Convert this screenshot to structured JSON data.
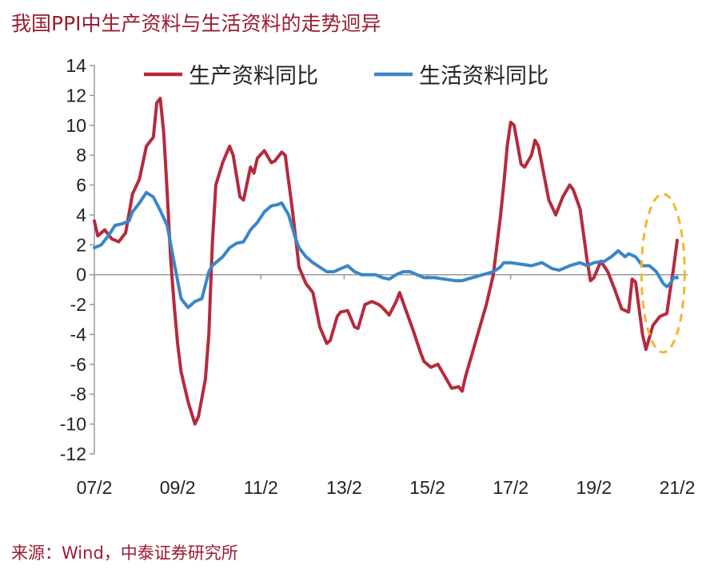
{
  "title": "我国PPI中生产资料与生活资料的走势迥异",
  "source": "来源：Wind，中泰证券研究所",
  "colors": {
    "producer": "#B52A3C",
    "consumer": "#3A86C8",
    "highlight": "#F2B632",
    "title": "#9B1B30"
  },
  "chart_data": {
    "type": "line",
    "title": "我国PPI中生产资料与生活资料的走势迥异",
    "xlabel": "",
    "ylabel": "",
    "ylim": [
      -12,
      14
    ],
    "yticks": [
      "14",
      "12",
      "10",
      "8",
      "6",
      "4",
      "2",
      "0",
      "-2",
      "-4",
      "-6",
      "-8",
      "-10",
      "-12"
    ],
    "xticks": [
      "07/2",
      "09/2",
      "11/2",
      "13/2",
      "15/2",
      "17/2",
      "19/2",
      "21/2"
    ],
    "legend_position": "top",
    "grid": false,
    "annotation": "dashed ellipse highlighting late 2020 – early 2021",
    "series": [
      {
        "name": "生产资料同比",
        "points": [
          [
            "2007-02",
            3.6
          ],
          [
            "2007-03",
            2.6
          ],
          [
            "2007-05",
            3.0
          ],
          [
            "2007-07",
            2.4
          ],
          [
            "2007-09",
            2.2
          ],
          [
            "2007-11",
            2.8
          ],
          [
            "2008-01",
            5.4
          ],
          [
            "2008-03",
            6.4
          ],
          [
            "2008-05",
            8.6
          ],
          [
            "2008-07",
            9.2
          ],
          [
            "2008-08",
            11.5
          ],
          [
            "2008-09",
            11.8
          ],
          [
            "2008-10",
            9.5
          ],
          [
            "2008-11",
            5.5
          ],
          [
            "2008-12",
            1.0
          ],
          [
            "2009-01",
            -2.0
          ],
          [
            "2009-02",
            -4.6
          ],
          [
            "2009-03",
            -6.5
          ],
          [
            "2009-05",
            -8.5
          ],
          [
            "2009-07",
            -10.0
          ],
          [
            "2009-08",
            -9.5
          ],
          [
            "2009-10",
            -7.0
          ],
          [
            "2009-11",
            -4.0
          ],
          [
            "2009-12",
            2.0
          ],
          [
            "2010-01",
            6.0
          ],
          [
            "2010-03",
            7.5
          ],
          [
            "2010-05",
            8.6
          ],
          [
            "2010-06",
            8.0
          ],
          [
            "2010-08",
            5.2
          ],
          [
            "2010-09",
            5.0
          ],
          [
            "2010-11",
            7.2
          ],
          [
            "2010-12",
            6.8
          ],
          [
            "2011-01",
            7.8
          ],
          [
            "2011-03",
            8.3
          ],
          [
            "2011-05",
            7.5
          ],
          [
            "2011-06",
            7.6
          ],
          [
            "2011-08",
            8.2
          ],
          [
            "2011-09",
            8.0
          ],
          [
            "2011-11",
            4.5
          ],
          [
            "2011-12",
            2.5
          ],
          [
            "2012-01",
            0.5
          ],
          [
            "2012-03",
            -0.6
          ],
          [
            "2012-05",
            -1.2
          ],
          [
            "2012-07",
            -3.5
          ],
          [
            "2012-09",
            -4.6
          ],
          [
            "2012-10",
            -4.4
          ],
          [
            "2012-12",
            -2.8
          ],
          [
            "2013-01",
            -2.5
          ],
          [
            "2013-03",
            -2.4
          ],
          [
            "2013-05",
            -3.5
          ],
          [
            "2013-06",
            -3.6
          ],
          [
            "2013-08",
            -2.0
          ],
          [
            "2013-10",
            -1.8
          ],
          [
            "2013-12",
            -2.0
          ],
          [
            "2014-01",
            -2.2
          ],
          [
            "2014-03",
            -2.7
          ],
          [
            "2014-05",
            -1.8
          ],
          [
            "2014-06",
            -1.2
          ],
          [
            "2014-08",
            -2.5
          ],
          [
            "2014-10",
            -3.8
          ],
          [
            "2014-12",
            -5.2
          ],
          [
            "2015-01",
            -5.8
          ],
          [
            "2015-03",
            -6.2
          ],
          [
            "2015-05",
            -6.0
          ],
          [
            "2015-07",
            -6.8
          ],
          [
            "2015-09",
            -7.6
          ],
          [
            "2015-11",
            -7.5
          ],
          [
            "2015-12",
            -7.8
          ],
          [
            "2016-01",
            -6.8
          ],
          [
            "2016-03",
            -5.2
          ],
          [
            "2016-05",
            -3.6
          ],
          [
            "2016-07",
            -2.0
          ],
          [
            "2016-09",
            0.0
          ],
          [
            "2016-11",
            3.8
          ],
          [
            "2016-12",
            6.0
          ],
          [
            "2017-01",
            8.6
          ],
          [
            "2017-02",
            10.2
          ],
          [
            "2017-03",
            10.0
          ],
          [
            "2017-05",
            7.4
          ],
          [
            "2017-06",
            7.2
          ],
          [
            "2017-08",
            8.0
          ],
          [
            "2017-09",
            9.0
          ],
          [
            "2017-10",
            8.6
          ],
          [
            "2017-12",
            6.2
          ],
          [
            "2018-01",
            5.0
          ],
          [
            "2018-03",
            4.0
          ],
          [
            "2018-05",
            5.2
          ],
          [
            "2018-07",
            6.0
          ],
          [
            "2018-08",
            5.7
          ],
          [
            "2018-10",
            4.4
          ],
          [
            "2018-12",
            1.0
          ],
          [
            "2019-01",
            -0.4
          ],
          [
            "2019-02",
            -0.2
          ],
          [
            "2019-04",
            0.9
          ],
          [
            "2019-06",
            0.2
          ],
          [
            "2019-08",
            -1.0
          ],
          [
            "2019-10",
            -2.3
          ],
          [
            "2019-12",
            -2.5
          ],
          [
            "2020-01",
            -0.3
          ],
          [
            "2020-02",
            -0.5
          ],
          [
            "2020-04",
            -4.0
          ],
          [
            "2020-05",
            -5.0
          ],
          [
            "2020-07",
            -3.4
          ],
          [
            "2020-09",
            -2.8
          ],
          [
            "2020-11",
            -2.6
          ],
          [
            "2020-12",
            -1.0
          ],
          [
            "2021-01",
            0.5
          ],
          [
            "2021-02",
            2.3
          ]
        ]
      },
      {
        "name": "生活资料同比",
        "points": [
          [
            "2007-02",
            1.8
          ],
          [
            "2007-04",
            2.0
          ],
          [
            "2007-06",
            2.6
          ],
          [
            "2007-08",
            3.3
          ],
          [
            "2007-10",
            3.4
          ],
          [
            "2007-12",
            3.6
          ],
          [
            "2008-01",
            4.2
          ],
          [
            "2008-03",
            4.8
          ],
          [
            "2008-05",
            5.5
          ],
          [
            "2008-07",
            5.2
          ],
          [
            "2008-09",
            4.3
          ],
          [
            "2008-11",
            3.3
          ],
          [
            "2009-01",
            0.8
          ],
          [
            "2009-03",
            -1.6
          ],
          [
            "2009-05",
            -2.2
          ],
          [
            "2009-07",
            -1.8
          ],
          [
            "2009-09",
            -1.6
          ],
          [
            "2009-11",
            0.2
          ],
          [
            "2009-12",
            0.6
          ],
          [
            "2010-01",
            0.8
          ],
          [
            "2010-03",
            1.2
          ],
          [
            "2010-05",
            1.8
          ],
          [
            "2010-07",
            2.1
          ],
          [
            "2010-09",
            2.2
          ],
          [
            "2010-11",
            3.0
          ],
          [
            "2011-01",
            3.5
          ],
          [
            "2011-03",
            4.2
          ],
          [
            "2011-05",
            4.6
          ],
          [
            "2011-07",
            4.7
          ],
          [
            "2011-08",
            4.8
          ],
          [
            "2011-10",
            4.0
          ],
          [
            "2011-12",
            2.4
          ],
          [
            "2012-01",
            1.8
          ],
          [
            "2012-03",
            1.2
          ],
          [
            "2012-05",
            0.8
          ],
          [
            "2012-07",
            0.5
          ],
          [
            "2012-09",
            0.2
          ],
          [
            "2012-11",
            0.2
          ],
          [
            "2013-01",
            0.4
          ],
          [
            "2013-03",
            0.6
          ],
          [
            "2013-05",
            0.2
          ],
          [
            "2013-07",
            0.0
          ],
          [
            "2013-09",
            0.0
          ],
          [
            "2013-11",
            0.0
          ],
          [
            "2014-01",
            -0.2
          ],
          [
            "2014-03",
            -0.3
          ],
          [
            "2014-05",
            0.0
          ],
          [
            "2014-07",
            0.2
          ],
          [
            "2014-09",
            0.2
          ],
          [
            "2014-11",
            0.0
          ],
          [
            "2015-01",
            -0.2
          ],
          [
            "2015-04",
            -0.2
          ],
          [
            "2015-07",
            -0.3
          ],
          [
            "2015-10",
            -0.4
          ],
          [
            "2015-12",
            -0.4
          ],
          [
            "2016-03",
            -0.2
          ],
          [
            "2016-06",
            0.0
          ],
          [
            "2016-09",
            0.2
          ],
          [
            "2016-11",
            0.5
          ],
          [
            "2016-12",
            0.8
          ],
          [
            "2017-02",
            0.8
          ],
          [
            "2017-05",
            0.7
          ],
          [
            "2017-08",
            0.6
          ],
          [
            "2017-11",
            0.8
          ],
          [
            "2018-02",
            0.4
          ],
          [
            "2018-04",
            0.3
          ],
          [
            "2018-07",
            0.6
          ],
          [
            "2018-10",
            0.8
          ],
          [
            "2018-12",
            0.6
          ],
          [
            "2019-02",
            0.8
          ],
          [
            "2019-05",
            0.9
          ],
          [
            "2019-07",
            1.2
          ],
          [
            "2019-09",
            1.6
          ],
          [
            "2019-11",
            1.2
          ],
          [
            "2019-12",
            1.4
          ],
          [
            "2020-02",
            1.2
          ],
          [
            "2020-04",
            0.6
          ],
          [
            "2020-06",
            0.6
          ],
          [
            "2020-08",
            0.2
          ],
          [
            "2020-10",
            -0.6
          ],
          [
            "2020-11",
            -0.8
          ],
          [
            "2020-12",
            -0.6
          ],
          [
            "2021-01",
            -0.2
          ],
          [
            "2021-02",
            -0.2
          ]
        ]
      }
    ]
  }
}
